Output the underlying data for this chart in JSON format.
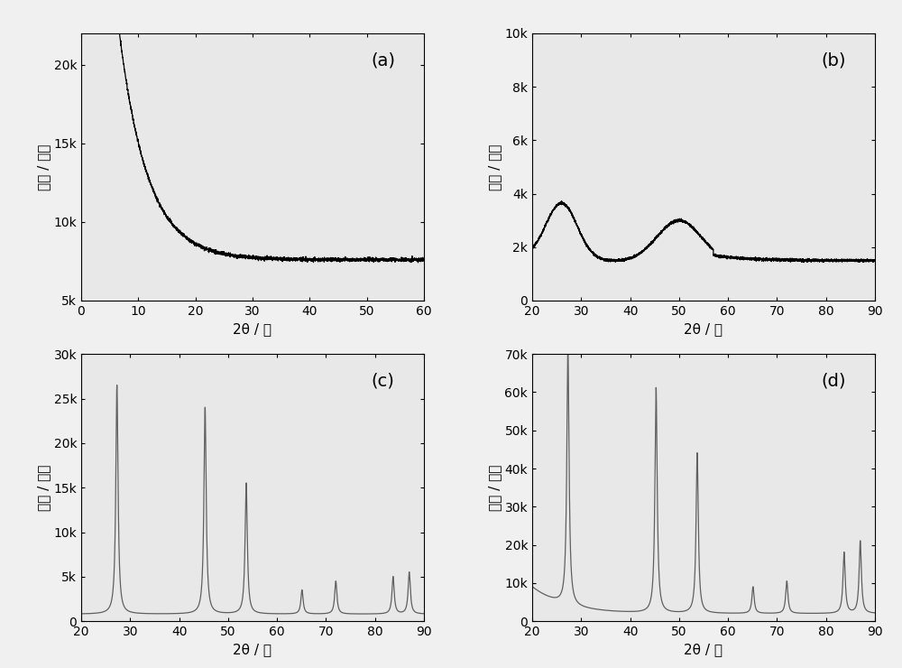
{
  "panel_a": {
    "label": "(a)",
    "xlim": [
      0,
      60
    ],
    "xticks": [
      0,
      10,
      20,
      30,
      40,
      50,
      60
    ],
    "ylim": [
      5000,
      22000
    ],
    "yticks": [
      5000,
      10000,
      15000,
      20000
    ],
    "ytick_labels": [
      "5k",
      "10k",
      "15k",
      "20k"
    ],
    "xlabel": "2θ / 度",
    "ylabel": "强度 / 计数"
  },
  "panel_b": {
    "label": "(b)",
    "xlim": [
      20,
      90
    ],
    "xticks": [
      20,
      30,
      40,
      50,
      60,
      70,
      80,
      90
    ],
    "ylim": [
      0,
      10000
    ],
    "yticks": [
      0,
      2000,
      4000,
      6000,
      8000,
      10000
    ],
    "ytick_labels": [
      "0",
      "2k",
      "4k",
      "6k",
      "8k",
      "10k"
    ],
    "xlabel": "2θ / 度",
    "ylabel": "强度 / 计数"
  },
  "panel_c": {
    "label": "(c)",
    "xlim": [
      20,
      90
    ],
    "xticks": [
      20,
      30,
      40,
      50,
      60,
      70,
      80,
      90
    ],
    "ylim": [
      0,
      30000
    ],
    "yticks": [
      0,
      5000,
      10000,
      15000,
      20000,
      25000,
      30000
    ],
    "ytick_labels": [
      "0",
      "5k",
      "10k",
      "15k",
      "20k",
      "25k",
      "30k"
    ],
    "xlabel": "2θ / 度",
    "ylabel": "强度 / 计数",
    "peaks": [
      27.3,
      45.3,
      53.7,
      65.1,
      72.0,
      83.7,
      87.0
    ],
    "peak_heights": [
      26500,
      24000,
      15500,
      3500,
      4500,
      5000,
      5500
    ]
  },
  "panel_d": {
    "label": "(d)",
    "xlim": [
      20,
      90
    ],
    "xticks": [
      20,
      30,
      40,
      50,
      60,
      70,
      80,
      90
    ],
    "ylim": [
      0,
      70000
    ],
    "yticks": [
      0,
      10000,
      20000,
      30000,
      40000,
      50000,
      60000,
      70000
    ],
    "ytick_labels": [
      "0",
      "10k",
      "20k",
      "30k",
      "40k",
      "50k",
      "60k",
      "70k"
    ],
    "xlabel": "2θ / 度",
    "ylabel": "强度 / 计数",
    "peaks": [
      27.3,
      45.3,
      53.7,
      65.1,
      72.0,
      83.7,
      87.0
    ],
    "peak_heights": [
      69000,
      61000,
      44000,
      9000,
      10500,
      18000,
      21000
    ]
  },
  "figure_bg": "#f0f0f0",
  "plot_bg": "#e8e8e8",
  "line_color_ab": "#000000",
  "line_color_cd": "#606060",
  "label_fontsize": 14,
  "tick_fontsize": 10,
  "axis_label_fontsize": 11
}
